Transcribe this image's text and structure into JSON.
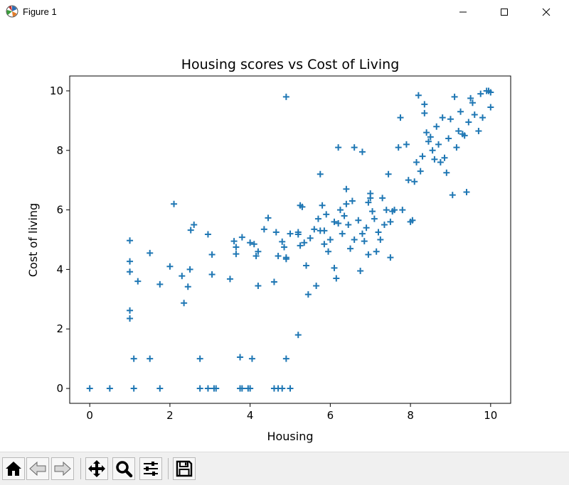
{
  "window": {
    "title": "Figure 1",
    "icon": "matplotlib-logo-icon",
    "controls": [
      "minimize-icon",
      "maximize-icon",
      "close-icon"
    ]
  },
  "toolbar": {
    "buttons": [
      "home-icon",
      "back-icon",
      "forward-icon",
      "pan-icon",
      "zoom-icon",
      "configure-subplots-icon",
      "save-icon"
    ]
  },
  "chart_data": {
    "type": "scatter",
    "title": "Housing scores vs Cost of Living",
    "xlabel": "Housing",
    "ylabel": "Cost of living",
    "xlim": [
      -0.5,
      10.5
    ],
    "ylim": [
      -0.5,
      10.5
    ],
    "xticks": [
      0,
      2,
      4,
      6,
      8,
      10
    ],
    "yticks": [
      0,
      2,
      4,
      6,
      8,
      10
    ],
    "marker": "+",
    "color": "#1f77b4",
    "grid": false,
    "legend": "none",
    "points": [
      [
        0,
        0
      ],
      [
        0.5,
        0
      ],
      [
        1.1,
        0
      ],
      [
        1.75,
        0
      ],
      [
        2.75,
        0
      ],
      [
        2.95,
        0
      ],
      [
        3.1,
        0
      ],
      [
        3.15,
        0
      ],
      [
        3.75,
        0
      ],
      [
        3.8,
        0
      ],
      [
        3.95,
        0
      ],
      [
        4,
        0
      ],
      [
        4.6,
        0
      ],
      [
        4.7,
        0
      ],
      [
        4.8,
        0
      ],
      [
        5,
        0
      ],
      [
        1.1,
        1
      ],
      [
        1.5,
        1
      ],
      [
        2.75,
        1
      ],
      [
        3.75,
        1.05
      ],
      [
        4.05,
        1
      ],
      [
        4.9,
        1
      ],
      [
        1,
        2.35
      ],
      [
        1,
        2.62
      ],
      [
        5.2,
        1.8
      ],
      [
        1,
        3.92
      ],
      [
        1,
        4.27
      ],
      [
        1,
        4.97
      ],
      [
        1.2,
        3.6
      ],
      [
        1.5,
        4.55
      ],
      [
        1.75,
        3.5
      ],
      [
        2,
        4.1
      ],
      [
        2.1,
        6.2
      ],
      [
        2.3,
        3.78
      ],
      [
        2.35,
        2.87
      ],
      [
        2.45,
        3.42
      ],
      [
        2.5,
        4
      ],
      [
        2.52,
        5.32
      ],
      [
        2.6,
        5.5
      ],
      [
        2.95,
        5.18
      ],
      [
        3.05,
        4.5
      ],
      [
        3.05,
        3.83
      ],
      [
        3.5,
        3.68
      ],
      [
        3.6,
        4.95
      ],
      [
        3.65,
        4.52
      ],
      [
        3.65,
        4.75
      ],
      [
        3.8,
        5.08
      ],
      [
        4,
        4.9
      ],
      [
        4.1,
        4.85
      ],
      [
        4.15,
        4.45
      ],
      [
        4.2,
        4.6
      ],
      [
        4.2,
        3.45
      ],
      [
        4.35,
        5.35
      ],
      [
        4.45,
        5.73
      ],
      [
        4.6,
        3.58
      ],
      [
        4.65,
        5.25
      ],
      [
        4.7,
        4.45
      ],
      [
        4.8,
        4.93
      ],
      [
        4.85,
        4.75
      ],
      [
        4.9,
        4.35
      ],
      [
        4.9,
        4.4
      ],
      [
        4.9,
        9.8
      ],
      [
        5,
        5.2
      ],
      [
        5.2,
        5.18
      ],
      [
        5.2,
        5.25
      ],
      [
        5.25,
        4.8
      ],
      [
        5.25,
        6.15
      ],
      [
        5.3,
        6.1
      ],
      [
        5.35,
        4.9
      ],
      [
        5.4,
        4.13
      ],
      [
        5.45,
        3.16
      ],
      [
        5.5,
        5.05
      ],
      [
        5.6,
        5.35
      ],
      [
        5.65,
        3.45
      ],
      [
        5.7,
        5.7
      ],
      [
        5.75,
        5.3
      ],
      [
        5.75,
        7.2
      ],
      [
        5.8,
        6.15
      ],
      [
        5.85,
        5.3
      ],
      [
        5.85,
        4.85
      ],
      [
        5.9,
        5.85
      ],
      [
        5.95,
        4.6
      ],
      [
        6,
        5
      ],
      [
        6.1,
        4.05
      ],
      [
        6.15,
        3.7
      ],
      [
        6.1,
        5.6
      ],
      [
        6.2,
        5.55
      ],
      [
        6.2,
        8.1
      ],
      [
        6.25,
        6.0
      ],
      [
        6.3,
        5.2
      ],
      [
        6.35,
        5.8
      ],
      [
        6.4,
        6.2
      ],
      [
        6.4,
        6.7
      ],
      [
        6.45,
        5.5
      ],
      [
        6.5,
        4.7
      ],
      [
        6.55,
        6.3
      ],
      [
        6.6,
        8.1
      ],
      [
        6.6,
        5.0
      ],
      [
        6.7,
        5.65
      ],
      [
        6.75,
        3.95
      ],
      [
        6.8,
        7.95
      ],
      [
        6.8,
        5.2
      ],
      [
        6.85,
        4.95
      ],
      [
        6.9,
        5.4
      ],
      [
        6.95,
        4.5
      ],
      [
        6.95,
        6.25
      ],
      [
        7.0,
        6.4
      ],
      [
        7.0,
        6.55
      ],
      [
        7.05,
        5.95
      ],
      [
        7.1,
        5.7
      ],
      [
        7.15,
        4.6
      ],
      [
        7.2,
        5.25
      ],
      [
        7.25,
        5.0
      ],
      [
        7.3,
        6.4
      ],
      [
        7.35,
        5.5
      ],
      [
        7.4,
        6.0
      ],
      [
        7.45,
        7.2
      ],
      [
        7.5,
        5.6
      ],
      [
        7.5,
        4.4
      ],
      [
        7.55,
        5.95
      ],
      [
        7.6,
        6.0
      ],
      [
        7.7,
        8.1
      ],
      [
        7.75,
        9.1
      ],
      [
        7.8,
        6.0
      ],
      [
        7.9,
        8.2
      ],
      [
        7.95,
        7.0
      ],
      [
        8.0,
        5.6
      ],
      [
        8.05,
        5.65
      ],
      [
        8.1,
        6.95
      ],
      [
        8.15,
        7.6
      ],
      [
        8.2,
        9.85
      ],
      [
        8.25,
        7.3
      ],
      [
        8.3,
        7.8
      ],
      [
        8.35,
        9.25
      ],
      [
        8.35,
        9.55
      ],
      [
        8.4,
        8.6
      ],
      [
        8.45,
        8.3
      ],
      [
        8.5,
        8.45
      ],
      [
        8.55,
        8.0
      ],
      [
        8.6,
        7.7
      ],
      [
        8.65,
        8.8
      ],
      [
        8.7,
        8.2
      ],
      [
        8.75,
        7.6
      ],
      [
        8.8,
        9.1
      ],
      [
        8.85,
        7.75
      ],
      [
        8.9,
        7.25
      ],
      [
        8.95,
        8.4
      ],
      [
        9.0,
        9.05
      ],
      [
        9.05,
        6.5
      ],
      [
        9.1,
        9.8
      ],
      [
        9.15,
        8.1
      ],
      [
        9.2,
        8.65
      ],
      [
        9.25,
        9.3
      ],
      [
        9.3,
        8.55
      ],
      [
        9.35,
        8.5
      ],
      [
        9.4,
        6.6
      ],
      [
        9.45,
        8.95
      ],
      [
        9.5,
        9.75
      ],
      [
        9.55,
        9.6
      ],
      [
        9.6,
        9.2
      ],
      [
        9.7,
        8.65
      ],
      [
        9.75,
        9.9
      ],
      [
        9.8,
        9.1
      ],
      [
        9.9,
        10.0
      ],
      [
        9.95,
        10
      ],
      [
        10,
        9.45
      ],
      [
        10,
        9.95
      ]
    ]
  }
}
